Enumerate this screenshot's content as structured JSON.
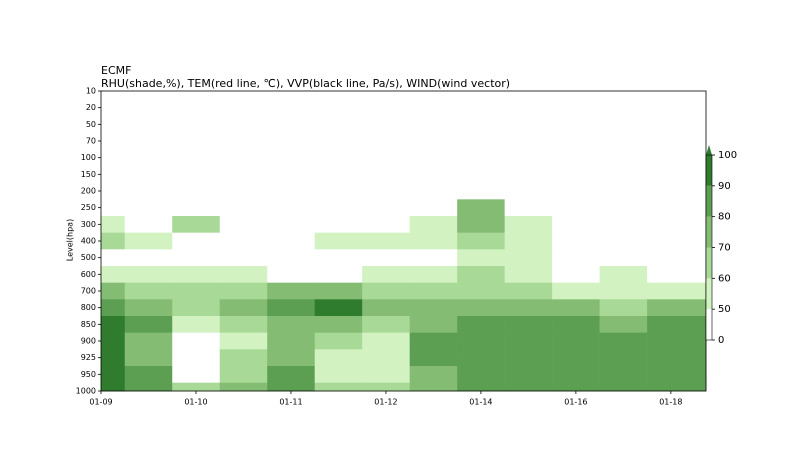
{
  "chart_data": {
    "type": "heatmap",
    "title": "ECMF",
    "subtitle": "RHU(shade,%), TEM(red line, ℃), VVP(black line, Pa/s), WIND(wind vector)",
    "y_label": "Level(hpa)",
    "levels": [
      10,
      20,
      50,
      70,
      100,
      150,
      200,
      250,
      300,
      400,
      500,
      600,
      700,
      800,
      850,
      900,
      925,
      950,
      1000
    ],
    "xlim": [
      0,
      6.37
    ],
    "xticks": [
      {
        "value": 0,
        "label": "01-09"
      },
      {
        "value": 1,
        "label": "01-10"
      },
      {
        "value": 2,
        "label": "01-11"
      },
      {
        "value": 3,
        "label": "01-12"
      },
      {
        "value": 4,
        "label": "01-14"
      },
      {
        "value": 5,
        "label": "01-16"
      },
      {
        "value": 6,
        "label": "01-18"
      }
    ],
    "x": [
      0,
      0.5,
      1,
      1.5,
      2,
      2.5,
      3,
      3.5,
      4,
      4.5,
      5,
      5.5,
      6
    ],
    "values": [
      [
        20,
        20,
        20,
        20,
        20,
        20,
        20,
        20,
        20,
        20,
        20,
        20,
        20
      ],
      [
        20,
        20,
        20,
        20,
        20,
        20,
        20,
        20,
        20,
        20,
        20,
        20,
        20
      ],
      [
        20,
        20,
        20,
        20,
        20,
        20,
        20,
        20,
        20,
        20,
        20,
        20,
        20
      ],
      [
        20,
        20,
        20,
        20,
        20,
        20,
        20,
        20,
        20,
        20,
        20,
        20,
        20
      ],
      [
        20,
        20,
        20,
        20,
        20,
        20,
        20,
        20,
        20,
        20,
        20,
        20,
        20
      ],
      [
        20,
        20,
        20,
        20,
        20,
        20,
        20,
        20,
        20,
        20,
        20,
        20,
        20
      ],
      [
        25,
        25,
        25,
        25,
        25,
        25,
        25,
        25,
        25,
        25,
        25,
        25,
        25
      ],
      [
        30,
        30,
        30,
        30,
        30,
        30,
        30,
        30,
        70,
        40,
        30,
        30,
        30
      ],
      [
        55,
        45,
        60,
        40,
        45,
        35,
        35,
        55,
        70,
        50,
        35,
        35,
        30
      ],
      [
        60,
        55,
        45,
        40,
        40,
        50,
        55,
        50,
        60,
        55,
        40,
        40,
        35
      ],
      [
        45,
        40,
        35,
        45,
        40,
        35,
        40,
        45,
        50,
        55,
        45,
        40,
        40
      ],
      [
        55,
        50,
        50,
        55,
        45,
        40,
        50,
        55,
        60,
        50,
        45,
        50,
        45
      ],
      [
        75,
        65,
        60,
        65,
        70,
        70,
        65,
        60,
        65,
        60,
        55,
        55,
        55
      ],
      [
        85,
        75,
        60,
        70,
        80,
        90,
        75,
        70,
        75,
        75,
        70,
        65,
        75
      ],
      [
        90,
        80,
        55,
        65,
        75,
        70,
        60,
        75,
        80,
        80,
        80,
        70,
        80
      ],
      [
        90,
        75,
        35,
        55,
        70,
        60,
        55,
        80,
        80,
        85,
        85,
        80,
        85
      ],
      [
        90,
        75,
        30,
        60,
        75,
        55,
        50,
        80,
        85,
        85,
        85,
        80,
        85
      ],
      [
        95,
        80,
        45,
        65,
        80,
        55,
        55,
        75,
        85,
        85,
        80,
        80,
        85
      ],
      [
        95,
        80,
        60,
        70,
        80,
        65,
        65,
        75,
        85,
        85,
        80,
        80,
        85
      ]
    ],
    "colorbar": {
      "bounds": [
        0,
        50,
        60,
        70,
        80,
        90,
        100
      ],
      "colors": [
        "#ffffff",
        "#d2f2c2",
        "#a9d996",
        "#83bc72",
        "#5c9f52",
        "#2f7c2f"
      ]
    }
  }
}
